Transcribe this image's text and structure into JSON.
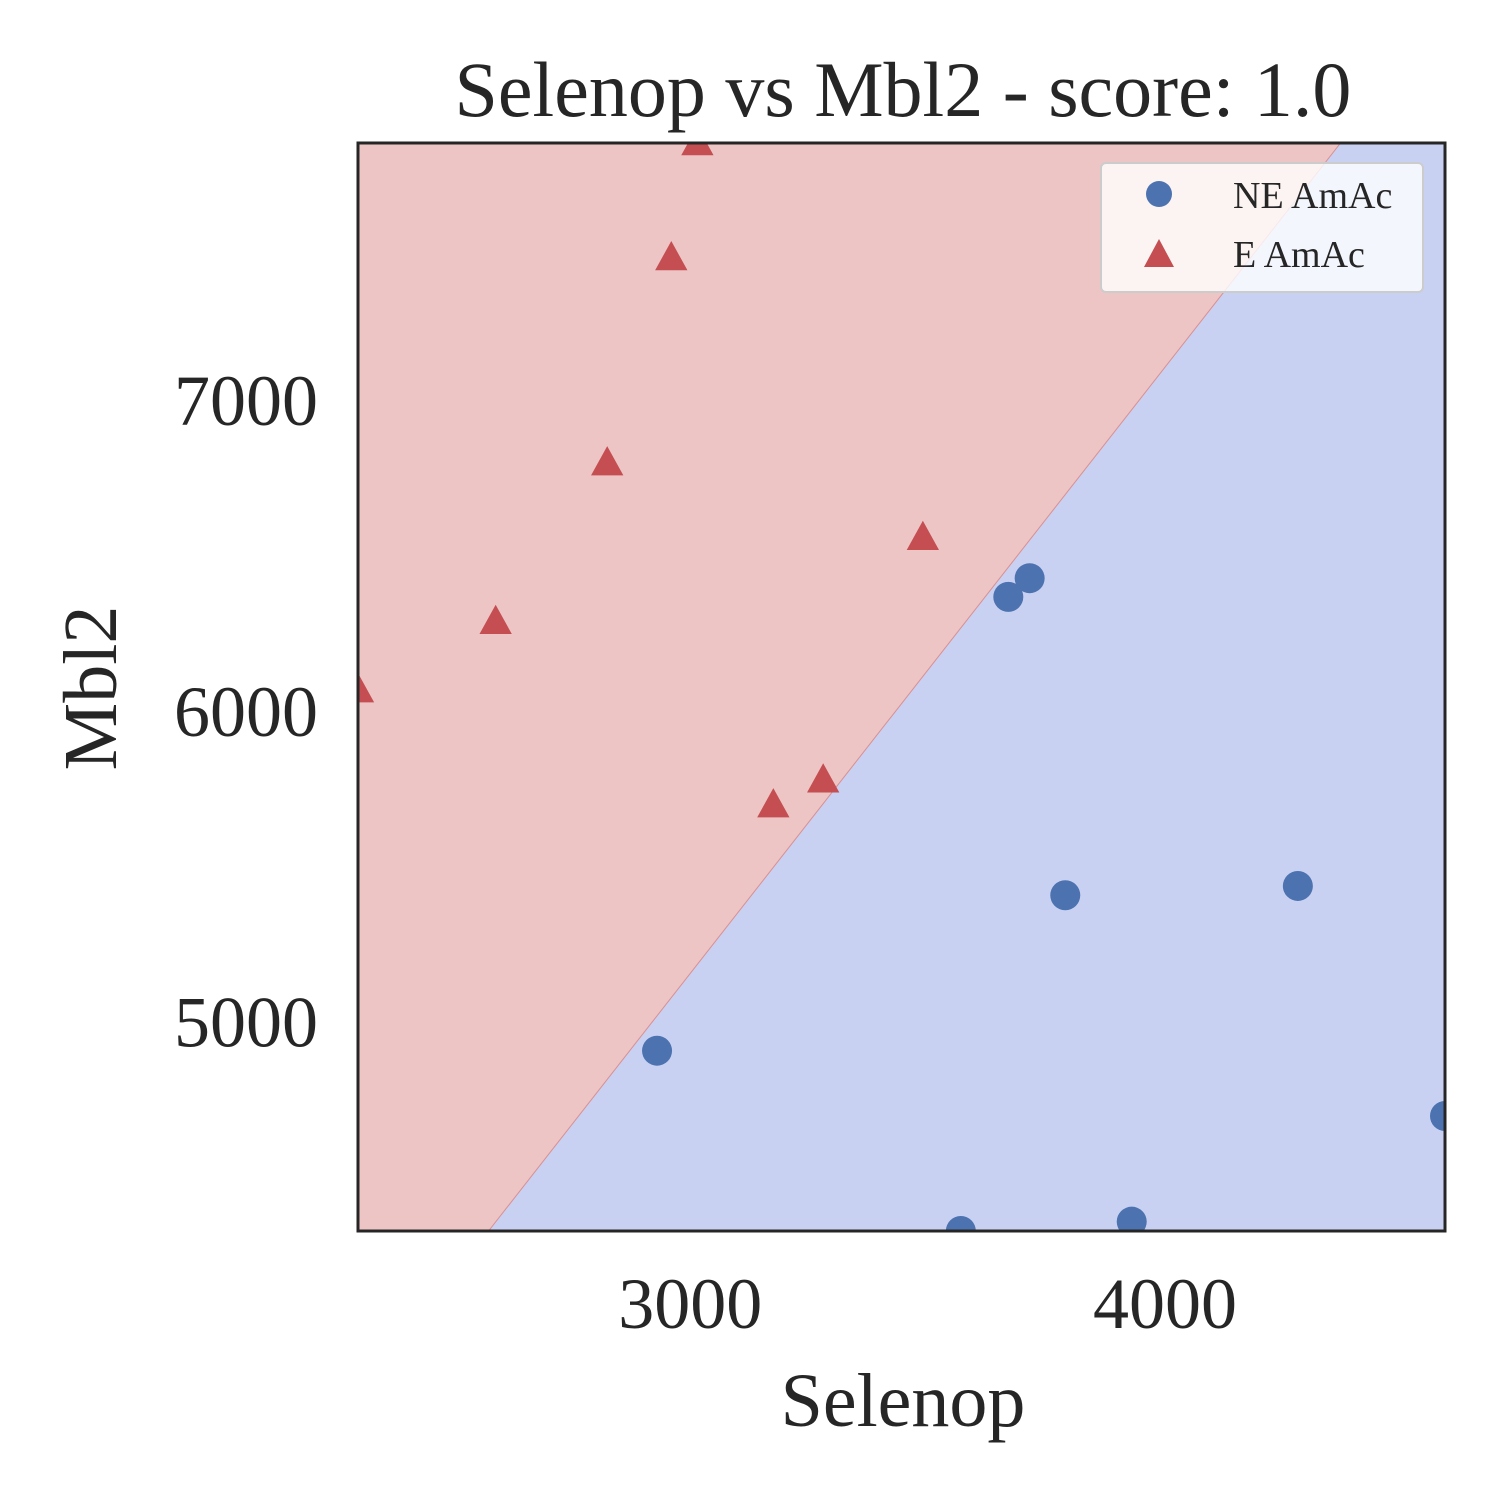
{
  "chart_data": {
    "type": "scatter",
    "title": "Selenop vs Mbl2 - score: 1.0",
    "xlabel": "Selenop",
    "ylabel": "Mbl2",
    "xlim": [
      2300,
      4590
    ],
    "ylim": [
      4330,
      7830
    ],
    "xticks": [
      3000,
      4000
    ],
    "yticks": [
      5000,
      6000,
      7000
    ],
    "xtick_labels": [
      "3000",
      "4000"
    ],
    "ytick_labels": [
      "5000",
      "6000",
      "7000"
    ],
    "grid": false,
    "legend_position": "top-right",
    "decision_boundary": [
      [
        2575,
        4330
      ],
      [
        4370,
        7830
      ]
    ],
    "regions": [
      {
        "side": "upper-left",
        "color": "#edc5c4"
      },
      {
        "side": "lower-right",
        "color": "#c9d1f2"
      }
    ],
    "series": [
      {
        "name": "NE AmAc",
        "marker": "circle",
        "color": "#4c72b0",
        "x": [
          2930,
          3570,
          3670,
          3715,
          3790,
          3930,
          4280,
          4590
        ],
        "y": [
          4910,
          4330,
          6370,
          6430,
          5410,
          4360,
          5440,
          4700
        ]
      },
      {
        "name": "E AmAc",
        "marker": "triangle",
        "color": "#c44e52",
        "x": [
          2300,
          2590,
          2825,
          2960,
          3015,
          3175,
          3280,
          3490
        ],
        "y": [
          6070,
          6290,
          6800,
          7460,
          7830,
          5700,
          5780,
          6560
        ]
      }
    ]
  }
}
